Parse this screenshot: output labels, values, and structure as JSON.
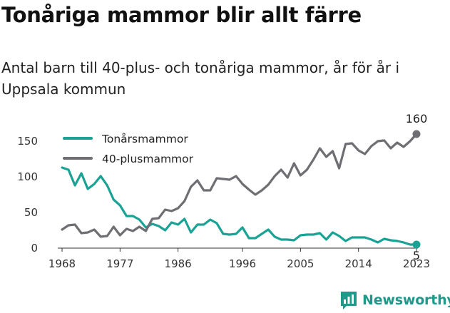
{
  "chart_data": {
    "type": "line",
    "title": "Tonåriga mammor blir allt färre",
    "subtitle": "Antal barn till 40-plus- och tonåriga mammor, år för år i Uppsala kommun",
    "x_ticks": [
      "1968",
      "1977",
      "1986",
      "1996",
      "2005",
      "2014",
      "2023"
    ],
    "y_ticks": [
      "0",
      "50",
      "100",
      "150"
    ],
    "ylim": [
      0,
      175
    ],
    "xlim": [
      1968,
      2023
    ],
    "grid": false,
    "legend_position": "top-left",
    "series": [
      {
        "name": "Tonårsmammor",
        "color": "#1aa394",
        "x": [
          1968,
          1969,
          1970,
          1971,
          1972,
          1973,
          1974,
          1975,
          1976,
          1977,
          1978,
          1979,
          1980,
          1981,
          1982,
          1983,
          1984,
          1985,
          1986,
          1987,
          1988,
          1989,
          1990,
          1991,
          1992,
          1993,
          1994,
          1995,
          1996,
          1997,
          1998,
          1999,
          2000,
          2001,
          2002,
          2003,
          2004,
          2005,
          2006,
          2007,
          2008,
          2009,
          2010,
          2011,
          2012,
          2013,
          2014,
          2015,
          2016,
          2017,
          2018,
          2019,
          2020,
          2021,
          2022,
          2023
        ],
        "values": [
          113,
          110,
          88,
          105,
          83,
          90,
          101,
          88,
          68,
          60,
          45,
          45,
          40,
          29,
          34,
          31,
          25,
          36,
          33,
          41,
          22,
          33,
          33,
          40,
          35,
          20,
          19,
          20,
          29,
          14,
          14,
          20,
          26,
          16,
          12,
          12,
          11,
          18,
          19,
          19,
          21,
          12,
          22,
          17,
          10,
          15,
          15,
          15,
          12,
          8,
          13,
          11,
          10,
          8,
          5,
          5
        ]
      },
      {
        "name": "40-plusmammor",
        "color": "#6e6e73",
        "x": [
          1968,
          1969,
          1970,
          1971,
          1972,
          1973,
          1974,
          1975,
          1976,
          1977,
          1978,
          1979,
          1980,
          1981,
          1982,
          1983,
          1984,
          1985,
          1986,
          1987,
          1988,
          1989,
          1990,
          1991,
          1992,
          1993,
          1994,
          1995,
          1996,
          1997,
          1998,
          1999,
          2000,
          2001,
          2002,
          2003,
          2004,
          2005,
          2006,
          2007,
          2008,
          2009,
          2010,
          2011,
          2012,
          2013,
          2014,
          2015,
          2016,
          2017,
          2018,
          2019,
          2020,
          2021,
          2022,
          2023
        ],
        "values": [
          26,
          32,
          33,
          21,
          22,
          26,
          16,
          17,
          30,
          18,
          27,
          24,
          30,
          24,
          41,
          42,
          54,
          52,
          56,
          66,
          86,
          95,
          81,
          81,
          98,
          97,
          96,
          101,
          90,
          82,
          75,
          81,
          89,
          101,
          110,
          99,
          119,
          102,
          110,
          124,
          140,
          128,
          136,
          112,
          146,
          147,
          137,
          132,
          143,
          150,
          151,
          140,
          148,
          142,
          150,
          160
        ]
      }
    ],
    "end_labels": [
      "5",
      "160"
    ]
  },
  "brand": {
    "name": "Newsworthy"
  }
}
